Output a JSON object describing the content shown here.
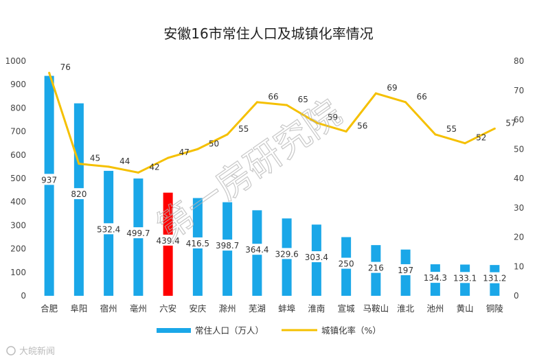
{
  "chart_data": {
    "type": "bar+line",
    "title": "安徽16市常住人口及城镇化率情况",
    "categories": [
      "合肥",
      "阜阳",
      "宿州",
      "亳州",
      "六安",
      "安庆",
      "滁州",
      "芜湖",
      "蚌埠",
      "淮南",
      "宣城",
      "马鞍山",
      "淮北",
      "池州",
      "黄山",
      "铜陵"
    ],
    "bar_series": {
      "name": "常住人口（万人）",
      "color": "#1aa7e8",
      "highlight_color": "#ff0000",
      "highlight_index": 4,
      "values": [
        937,
        820,
        532.4,
        499.7,
        439.4,
        416.5,
        398.7,
        364.4,
        329.6,
        303.4,
        250,
        216,
        197,
        134.3,
        133.1,
        131.2
      ],
      "labels": [
        "937",
        "820",
        "532.4",
        "499.7",
        "439.4",
        "416.5",
        "398.7",
        "364.4",
        "329.6",
        "303.4",
        "250",
        "216",
        "197",
        "134.3",
        "133.1",
        "131.2"
      ]
    },
    "line_series": {
      "name": "城镇化率（%）",
      "color": "#f5c000",
      "values": [
        76,
        45,
        44,
        42,
        47,
        50,
        55,
        66,
        65,
        59,
        56,
        69,
        66,
        55,
        52,
        57
      ]
    },
    "y_left": {
      "min": 0,
      "max": 1000,
      "ticks": [
        "0",
        "100",
        "200",
        "300",
        "400",
        "500",
        "600",
        "700",
        "800",
        "900",
        "1000"
      ]
    },
    "y_right": {
      "min": 0,
      "max": 80,
      "ticks": [
        "0",
        "10",
        "20",
        "30",
        "40",
        "50",
        "60",
        "70",
        "80"
      ]
    },
    "grid": false,
    "legend_position": "bottom"
  },
  "watermark": "第一房研究院",
  "brand": "大皖新闻"
}
